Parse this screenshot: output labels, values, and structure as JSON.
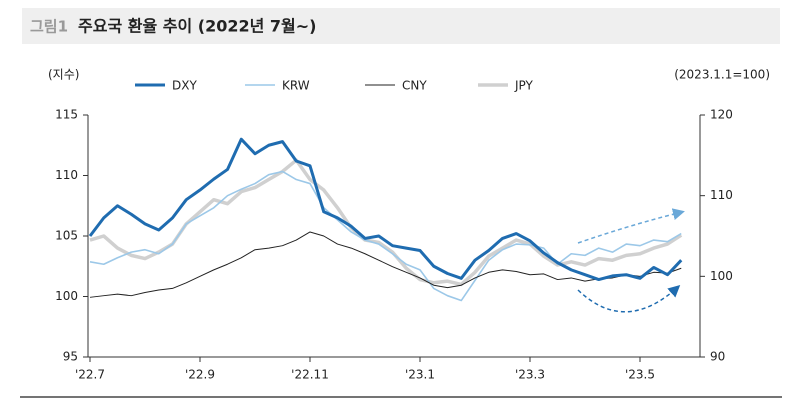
{
  "chart_data": {
    "type": "line",
    "figure_label": "그림1",
    "title": "주요국 환율 추이 (2022년 7월~)",
    "y_label": "(지수)",
    "y2_label": "(2023.1.1=100)",
    "categories": [
      "'22.7",
      null,
      null,
      null,
      null,
      null,
      null,
      null,
      "'22.9",
      null,
      null,
      null,
      null,
      null,
      null,
      null,
      "'22.11",
      null,
      null,
      null,
      null,
      null,
      null,
      null,
      "'23.1",
      null,
      null,
      null,
      null,
      null,
      null,
      null,
      "'23.3",
      null,
      null,
      null,
      null,
      null,
      null,
      null,
      "'23.5",
      null,
      null,
      null
    ],
    "ylim": [
      95,
      115
    ],
    "yticks": [
      95,
      100,
      105,
      110,
      115
    ],
    "y2lim": [
      90,
      120
    ],
    "y2ticks": [
      90,
      100,
      110,
      120
    ],
    "grid": false,
    "series": [
      {
        "name": "DXY",
        "color": "#1f6cb0",
        "values": [
          105.0,
          106.5,
          107.5,
          106.8,
          106.0,
          105.5,
          106.5,
          108.0,
          108.8,
          109.7,
          110.5,
          113.0,
          111.8,
          112.5,
          112.8,
          111.2,
          110.8,
          107.0,
          106.5,
          105.8,
          104.8,
          105.0,
          104.2,
          104.0,
          103.8,
          102.5,
          101.9,
          101.5,
          103.0,
          103.8,
          104.8,
          105.2,
          104.6,
          103.6,
          102.8,
          102.2,
          101.8,
          101.4,
          101.7,
          101.8,
          101.5,
          102.4,
          101.8,
          103.0
        ]
      },
      {
        "name": "KRW",
        "color": "#9cc8e8",
        "axis": "y2",
        "values": [
          101.8,
          101.5,
          102.3,
          103.0,
          103.3,
          102.8,
          104.0,
          106.5,
          107.5,
          108.5,
          110.0,
          110.8,
          111.5,
          112.6,
          113.0,
          112.0,
          111.5,
          108.5,
          107.0,
          105.5,
          104.5,
          104.0,
          102.8,
          101.5,
          100.8,
          98.5,
          97.6,
          97.0,
          99.5,
          102.0,
          103.3,
          104.0,
          103.9,
          103.5,
          101.5,
          102.8,
          102.6,
          103.5,
          103.0,
          104.0,
          103.8,
          104.5,
          104.3,
          105.3
        ]
      },
      {
        "name": "CNY",
        "color": "#222222",
        "axis": "y2",
        "values": [
          97.4,
          97.6,
          97.8,
          97.6,
          98.0,
          98.3,
          98.5,
          99.2,
          100.0,
          100.8,
          101.5,
          102.3,
          103.3,
          103.5,
          103.8,
          104.5,
          105.5,
          105.0,
          104.0,
          103.5,
          102.8,
          102.0,
          101.2,
          100.5,
          99.8,
          98.9,
          98.6,
          98.9,
          99.8,
          100.5,
          100.8,
          100.6,
          100.2,
          100.3,
          99.6,
          99.8,
          99.4,
          99.7,
          99.8,
          100.2,
          100.0,
          100.5,
          100.4,
          101.0
        ]
      },
      {
        "name": "JPY",
        "color": "#d0d0d0",
        "axis": "y2",
        "values": [
          104.5,
          105.0,
          103.5,
          102.6,
          102.2,
          103.0,
          104.0,
          106.5,
          108.0,
          109.5,
          109.0,
          110.5,
          111.0,
          112.0,
          113.0,
          114.4,
          112.0,
          110.7,
          108.5,
          106.0,
          104.5,
          104.2,
          103.0,
          101.0,
          99.6,
          99.2,
          99.4,
          99.0,
          100.5,
          102.5,
          103.5,
          104.5,
          104.0,
          102.5,
          101.4,
          101.8,
          101.4,
          102.2,
          102.0,
          102.6,
          102.8,
          103.5,
          104.0,
          105.1
        ]
      }
    ]
  }
}
